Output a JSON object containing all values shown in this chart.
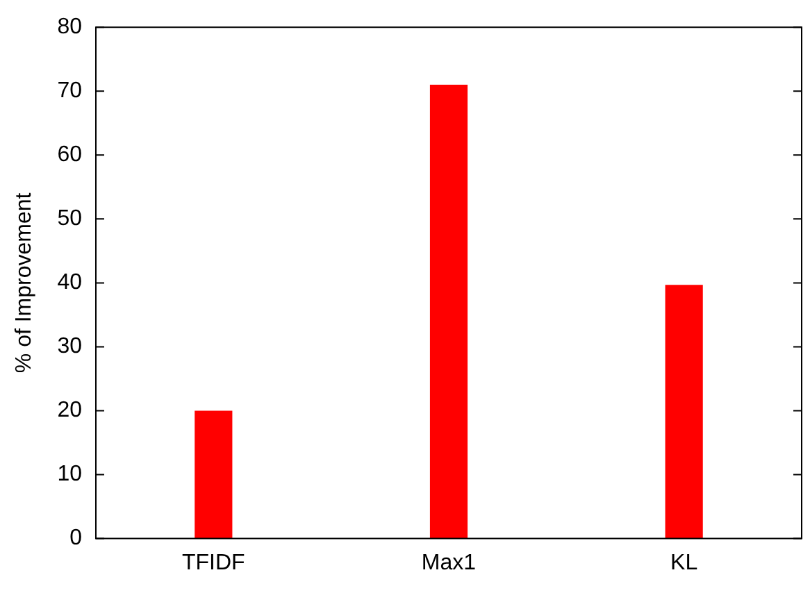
{
  "chart_data": {
    "type": "bar",
    "ylabel": "% of Improvement",
    "categories": [
      "TFIDF",
      "Max1",
      "KL"
    ],
    "values": [
      20,
      71,
      39.7
    ],
    "color": "#ff0000",
    "ylim": [
      0,
      80
    ],
    "yticks": [
      0,
      10,
      20,
      30,
      40,
      50,
      60,
      70,
      80
    ],
    "grid": false,
    "legend": false
  }
}
